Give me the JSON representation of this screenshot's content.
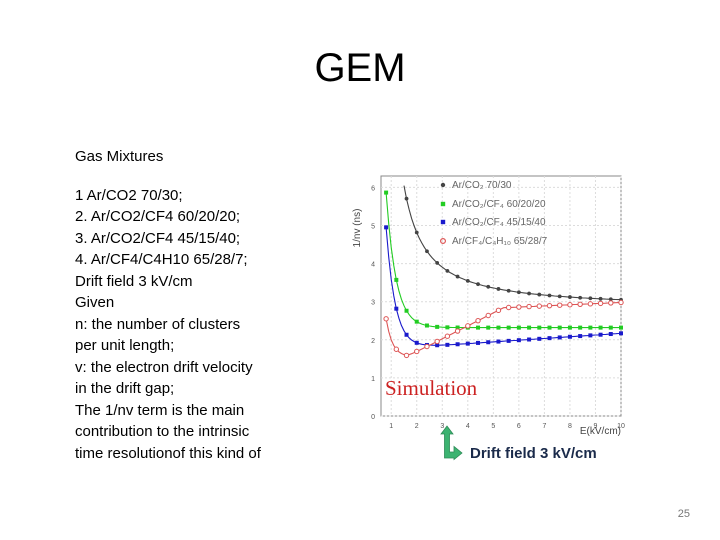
{
  "slide": {
    "title": "GEM",
    "lines": [
      "Gas Mixtures",
      "",
      "1 Ar/CO2  70/30;",
      "2. Ar/CO2/CF4 60/20/20;",
      "3. Ar/CO2/CF4 45/15/40;",
      "4. Ar/CF4/C4H10 65/28/7;",
      "Drift field 3 kV/cm",
      "Given",
      "n: the number of clusters",
      "per unit length;",
      "v: the electron drift velocity",
      "in the drift gap;",
      "The 1/nv term is the main",
      "contribution to the intrinsic",
      "time resolutionof this kind of"
    ],
    "page_number": "25"
  },
  "figure": {
    "ylabel": "1/nv (ns)",
    "xlabel": "E(kV/cm)",
    "yticks": [
      "0",
      "1",
      "2",
      "3",
      "4",
      "5",
      "6"
    ],
    "xticks": [
      "1",
      "2",
      "3",
      "4",
      "5",
      "6",
      "7",
      "8",
      "9",
      "10"
    ],
    "legend": [
      {
        "label": "Ar/CO₂ 70/30",
        "color": "#444444",
        "marker": "circle"
      },
      {
        "label": "Ar/CO₂/CF₄ 60/20/20",
        "color": "#22cc22",
        "marker": "square"
      },
      {
        "label": "Ar/CO₂/CF₄ 45/15/40",
        "color": "#1a1acc",
        "marker": "square"
      },
      {
        "label": "Ar/CF₄/C₄H₁₀ 65/28/7",
        "color": "#dd5555",
        "marker": "circle-open"
      }
    ],
    "annotation": "Simulation",
    "annotation_color": "#cc2222",
    "callout": "Drift field 3 kV/cm",
    "arrow_color": "#22aa55"
  }
}
